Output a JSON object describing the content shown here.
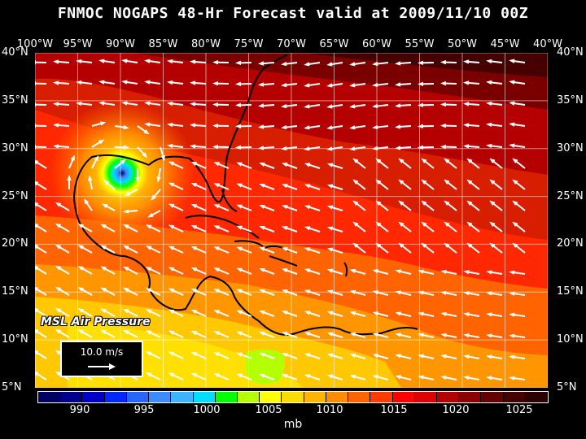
{
  "title": "FNMOC NOGAPS 48-Hr Forecast valid at 2009/11/10 00Z",
  "lon_labels": [
    "100°W",
    "95°W",
    "90°W",
    "85°W",
    "80°W",
    "75°W",
    "70°W",
    "65°W",
    "60°W",
    "55°W",
    "50°W",
    "45°W",
    "40°W"
  ],
  "lat_labels": [
    "40°N",
    "35°N",
    "30°N",
    "25°N",
    "20°N",
    "15°N",
    "10°N",
    "5°N"
  ],
  "field_label": "MSL Air Pressure",
  "vector_scale": "10.0 m/s",
  "colorbar_ticks": [
    "990",
    "995",
    "1000",
    "1005",
    "1010",
    "1015",
    "1020",
    "1025"
  ],
  "colorbar_unit": "mb",
  "colorbar_colors": [
    "#000064",
    "#00008c",
    "#0000c8",
    "#0028ff",
    "#2864ff",
    "#3c8cff",
    "#3cb4ff",
    "#00dcff",
    "#00ff00",
    "#b4ff00",
    "#ffff00",
    "#ffdc00",
    "#ffb400",
    "#ff8c00",
    "#ff6400",
    "#ff3c00",
    "#ff0000",
    "#dc0000",
    "#b40000",
    "#8c0000",
    "#640000",
    "#460000",
    "#2d0000"
  ]
}
